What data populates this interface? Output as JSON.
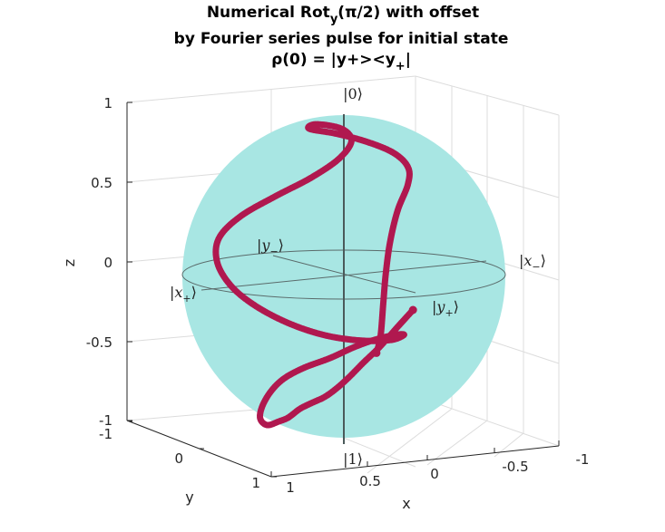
{
  "chart_data": {
    "type": "scatter",
    "title_lines": [
      {
        "pre": "Numerical Rot",
        "sub": "y",
        "post": "(π/2) with offset"
      },
      {
        "pre": "by Fourier series pulse for initial state",
        "sub": "",
        "post": ""
      },
      {
        "pre": "ρ(0) = |y+><y",
        "sub": "+",
        "post": "|"
      }
    ],
    "xlabel": "x",
    "ylabel": "y",
    "zlabel": "z",
    "xlim": [
      -1,
      1
    ],
    "ylim": [
      -1,
      1
    ],
    "zlim": [
      -1,
      1
    ],
    "x_ticks": [
      "1",
      "0.5",
      "0",
      "-0.5",
      "-1"
    ],
    "y_ticks": [
      "-1",
      "0",
      "1"
    ],
    "z_ticks": [
      "1",
      "0.5",
      "0",
      "-0.5",
      "-1"
    ],
    "grid": true,
    "sphere_color": "#a8e6e3",
    "trajectory_color": "#b0184f",
    "ket_labels": {
      "zero": "|0⟩",
      "one": "|1⟩",
      "x_plus_pre": "|",
      "x_plus_mid": "x",
      "x_plus_sub": "+",
      "x_plus_post": "⟩",
      "x_minus_pre": "|",
      "x_minus_mid": "x",
      "x_minus_sub": "−",
      "x_minus_post": "⟩",
      "y_plus_pre": "|",
      "y_plus_mid": "y",
      "y_plus_sub": "+",
      "y_plus_post": "⟩",
      "y_minus_pre": "|",
      "y_minus_mid": "y",
      "y_minus_sub": "−",
      "y_minus_post": "⟩"
    },
    "series": [
      {
        "points": [
          [
            0.02,
            0.99,
            -0.1
          ],
          [
            0.12,
            0.97,
            -0.2
          ],
          [
            0.22,
            0.92,
            -0.32
          ],
          [
            0.3,
            0.85,
            -0.42
          ],
          [
            0.36,
            0.76,
            -0.52
          ],
          [
            0.4,
            0.66,
            -0.6
          ],
          [
            0.42,
            0.55,
            -0.66
          ],
          [
            0.43,
            0.44,
            -0.7
          ],
          [
            0.43,
            0.32,
            -0.74
          ],
          [
            0.42,
            0.2,
            -0.78
          ],
          [
            0.42,
            0.05,
            -0.85
          ],
          [
            0.45,
            -0.02,
            -0.88
          ],
          [
            0.52,
            -0.05,
            -0.9
          ],
          [
            0.58,
            -0.03,
            -0.85
          ],
          [
            0.6,
            0.04,
            -0.76
          ],
          [
            0.58,
            0.12,
            -0.66
          ],
          [
            0.52,
            0.18,
            -0.58
          ],
          [
            0.4,
            0.22,
            -0.52
          ],
          [
            0.2,
            0.2,
            -0.48
          ],
          [
            0.0,
            0.14,
            -0.44
          ],
          [
            -0.2,
            0.06,
            -0.42
          ],
          [
            -0.38,
            -0.02,
            -0.42
          ],
          [
            -0.48,
            -0.1,
            -0.44
          ],
          [
            -0.44,
            -0.2,
            -0.48
          ],
          [
            -0.28,
            -0.3,
            -0.48
          ],
          [
            -0.08,
            -0.4,
            -0.44
          ],
          [
            0.12,
            -0.5,
            -0.36
          ],
          [
            0.32,
            -0.58,
            -0.24
          ],
          [
            0.48,
            -0.62,
            -0.1
          ],
          [
            0.58,
            -0.62,
            0.06
          ],
          [
            0.6,
            -0.56,
            0.22
          ],
          [
            0.5,
            -0.46,
            0.36
          ],
          [
            0.3,
            -0.36,
            0.48
          ],
          [
            0.08,
            -0.3,
            0.58
          ],
          [
            -0.12,
            -0.3,
            0.68
          ],
          [
            -0.22,
            -0.32,
            0.78
          ],
          [
            -0.16,
            -0.34,
            0.86
          ],
          [
            0.0,
            -0.38,
            0.9
          ],
          [
            0.06,
            -0.36,
            0.88
          ],
          [
            -0.1,
            -0.3,
            0.84
          ],
          [
            -0.28,
            -0.22,
            0.78
          ],
          [
            -0.44,
            -0.16,
            0.7
          ],
          [
            -0.54,
            -0.16,
            0.6
          ],
          [
            -0.58,
            -0.24,
            0.48
          ],
          [
            -0.58,
            -0.38,
            0.3
          ],
          [
            -0.58,
            -0.48,
            0.1
          ],
          [
            -0.58,
            -0.54,
            -0.1
          ],
          [
            -0.56,
            -0.54,
            -0.3
          ],
          [
            -0.52,
            -0.5,
            -0.5
          ],
          [
            -0.48,
            -0.48,
            -0.6
          ]
        ]
      }
    ]
  }
}
